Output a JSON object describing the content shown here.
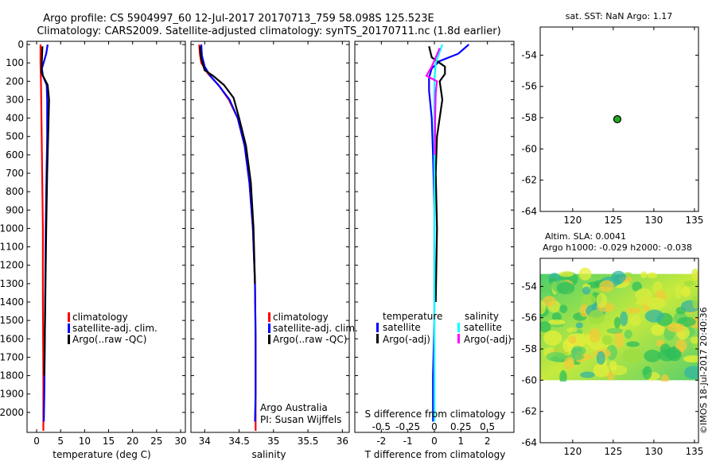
{
  "header": {
    "line1": "Argo profile: CS 5904997_60 12-Jul-2017 20170713_759 58.098S 125.523E",
    "line2": "Climatology: CARS2009. Satellite-adjusted climatology: synTS_20170711.nc (1.8d earlier)"
  },
  "side_label": "©IMOS 18-Jul-2017 20:40:36",
  "colors": {
    "climatology": "#ff0000",
    "satellite": "#0000ff",
    "argo": "#000000",
    "sal_satellite": "#00ffff",
    "sal_argo": "#ff00ff",
    "marker": "#22aa22"
  },
  "chart_data": [
    {
      "type": "line",
      "id": "temperature",
      "xlabel": "temperature (deg C)",
      "ylabel": "",
      "xlim": [
        -2,
        31
      ],
      "ylim": [
        2100,
        0
      ],
      "xticks": [
        0,
        5,
        10,
        15,
        20,
        25,
        30
      ],
      "yticks": [
        0,
        100,
        200,
        300,
        400,
        500,
        600,
        700,
        800,
        900,
        1000,
        1100,
        1200,
        1300,
        1400,
        1500,
        1600,
        1700,
        1800,
        1900,
        2000
      ],
      "legend": [
        "climatology",
        "satellite-adj. clim.",
        "Argo(..raw -QC)"
      ],
      "series": [
        {
          "name": "climatology",
          "x": [
            0.8,
            0.8,
            0.9,
            1.0,
            1.1,
            1.2,
            1.3,
            1.3,
            1.4,
            1.4
          ],
          "y": [
            0,
            100,
            200,
            400,
            600,
            800,
            1000,
            1400,
            1800,
            2100
          ]
        },
        {
          "name": "satellite-adj. clim.",
          "x": [
            2.3,
            2.0,
            1.1,
            1.3,
            2.1,
            2.2,
            2.2,
            2.0,
            1.9,
            1.8,
            1.7,
            1.6,
            1.5
          ],
          "y": [
            0,
            50,
            130,
            170,
            220,
            300,
            500,
            800,
            1000,
            1300,
            1600,
            1900,
            2050
          ]
        },
        {
          "name": "Argo(..raw -QC)",
          "x": [
            1.2,
            1.1,
            1.0,
            1.3,
            2.3,
            2.6,
            2.4,
            2.2,
            2.0,
            1.8,
            1.6
          ],
          "y": [
            10,
            80,
            150,
            170,
            220,
            300,
            500,
            700,
            1000,
            1400,
            1800
          ]
        }
      ]
    },
    {
      "type": "line",
      "id": "salinity",
      "xlabel": "salinity",
      "ylabel": "",
      "xlim": [
        33.8,
        36.1
      ],
      "ylim": [
        2100,
        0
      ],
      "xticks": [
        34,
        34.5,
        35,
        35.5,
        36
      ],
      "legend": [
        "climatology",
        "satellite-adj. clim.",
        "Argo(..raw -QC)"
      ],
      "annotation": [
        "Argo Australia",
        "PI: Susan Wijffels"
      ],
      "series": [
        {
          "name": "climatology",
          "x": [
            33.92,
            33.93,
            33.95,
            34.05,
            34.2,
            34.35,
            34.48,
            34.58,
            34.65,
            34.7,
            34.73,
            34.74,
            34.74,
            34.74
          ],
          "y": [
            0,
            50,
            100,
            160,
            220,
            300,
            400,
            550,
            750,
            1000,
            1300,
            1600,
            1900,
            2100
          ]
        },
        {
          "name": "satellite-adj. clim.",
          "x": [
            33.95,
            33.96,
            34.0,
            34.08,
            34.22,
            34.36,
            34.48,
            34.58,
            34.65,
            34.7,
            34.73,
            34.74,
            34.74,
            34.73
          ],
          "y": [
            0,
            60,
            120,
            170,
            230,
            300,
            400,
            550,
            750,
            1000,
            1300,
            1600,
            1900,
            2050
          ]
        },
        {
          "name": "Argo(..raw -QC)",
          "x": [
            33.93,
            33.95,
            34.0,
            34.12,
            34.28,
            34.42,
            34.5,
            34.6,
            34.67,
            34.71,
            34.73
          ],
          "y": [
            10,
            80,
            140,
            170,
            220,
            290,
            400,
            550,
            750,
            1000,
            1300
          ]
        }
      ]
    },
    {
      "type": "line",
      "id": "difference",
      "xlabel": "T difference from climatology",
      "xlabel2": "S difference from climatology",
      "xlim": [
        -3,
        3
      ],
      "ylim": [
        2100,
        0
      ],
      "xticks": [
        -2,
        -1,
        0,
        1,
        2
      ],
      "x2ticks": [
        -0.5,
        -0.25,
        0,
        0.25,
        0.5
      ],
      "legend_left_title": "temperature",
      "legend_right_title": "salinity",
      "legend_left": [
        "satellite",
        "Argo(-adj)"
      ],
      "legend_right": [
        "satellite",
        "Argo(-adj)"
      ],
      "series": [
        {
          "name": "T satellite",
          "x": [
            1.3,
            0.9,
            0.2,
            -0.1,
            -0.2,
            -0.2,
            -0.1,
            -0.05,
            0,
            0,
            0,
            -0.05,
            -0.05
          ],
          "y": [
            0,
            50,
            90,
            130,
            180,
            250,
            400,
            600,
            900,
            1200,
            1500,
            1800,
            2050
          ]
        },
        {
          "name": "T Argo(-adj)",
          "x": [
            -0.2,
            -0.1,
            0.4,
            0.4,
            0.2,
            0.3,
            0.1,
            0.05,
            0.1,
            0.05
          ],
          "y": [
            10,
            70,
            120,
            160,
            200,
            300,
            500,
            700,
            1000,
            1400
          ]
        },
        {
          "name": "S satellite",
          "x": [
            0.3,
            0.05,
            0,
            0,
            0,
            0,
            0,
            0,
            0
          ],
          "y": [
            0,
            100,
            200,
            400,
            700,
            1000,
            1400,
            1800,
            2050
          ]
        },
        {
          "name": "S Argo(-adj)",
          "x": [
            0.2,
            -0.1,
            -0.3,
            0.1,
            0.05,
            0.03,
            0.02
          ],
          "y": [
            20,
            120,
            170,
            200,
            260,
            400,
            600
          ]
        }
      ]
    },
    {
      "type": "scatter",
      "id": "map_sst",
      "title": "sat. SST: NaN Argo: 1.17",
      "xlim": [
        116,
        135.5
      ],
      "ylim": [
        -64,
        -52.2
      ],
      "xticks": [
        120,
        125,
        130,
        135
      ],
      "yticks": [
        -54,
        -56,
        -58,
        -60,
        -62,
        -64
      ],
      "x": [
        125.5
      ],
      "y": [
        -58.1
      ]
    },
    {
      "type": "heatmap",
      "id": "map_sla",
      "title": "Altim. SLA: 0.0041",
      "subtitle": "Argo h1000: -0.029 h2000: -0.038",
      "xlim": [
        116,
        135.5
      ],
      "ylim": [
        -64,
        -52.2
      ],
      "xticks": [
        120,
        125,
        130,
        135
      ],
      "yticks": [
        -54,
        -56,
        -58,
        -60,
        -62,
        -64
      ],
      "data_extent": {
        "lon": [
          116,
          135.5
        ],
        "lat": [
          -60,
          -53.2
        ]
      }
    }
  ]
}
